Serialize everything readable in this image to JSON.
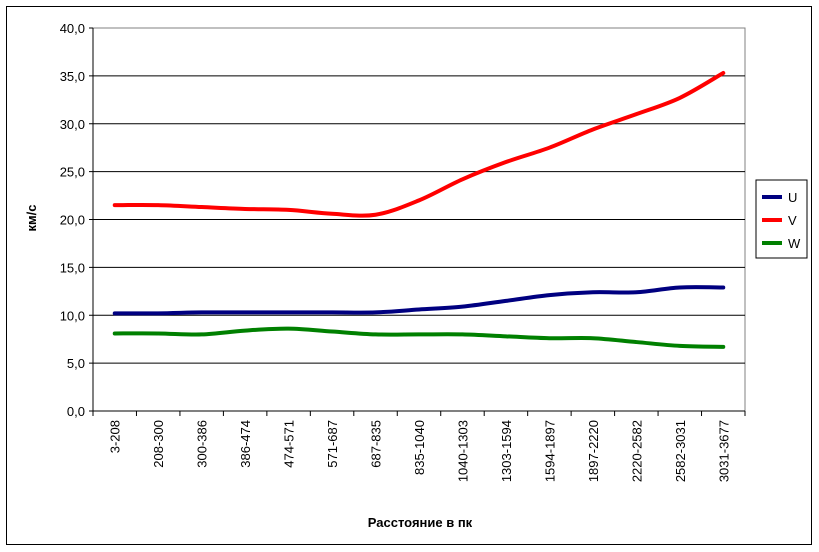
{
  "chart_data": {
    "type": "line",
    "title": "",
    "xlabel": "Расстояние в пк",
    "ylabel": "км/с",
    "ylim": [
      0,
      40
    ],
    "yticks": [
      "0,0",
      "5,0",
      "10,0",
      "15,0",
      "20,0",
      "25,0",
      "30,0",
      "35,0",
      "40,0"
    ],
    "grid": true,
    "legend_position": "right",
    "categories": [
      "3-208",
      "208-300",
      "300-386",
      "386-474",
      "474-571",
      "571-687",
      "687-835",
      "835-1040",
      "1040-1303",
      "1303-1594",
      "1594-1897",
      "1897-2220",
      "2220-2582",
      "2582-3031",
      "3031-3677"
    ],
    "series": [
      {
        "name": "U",
        "color": "#000080",
        "values": [
          10.2,
          10.2,
          10.3,
          10.3,
          10.3,
          10.3,
          10.3,
          10.6,
          10.9,
          11.5,
          12.1,
          12.4,
          12.4,
          12.9,
          12.9
        ]
      },
      {
        "name": "V",
        "color": "#ff0000",
        "values": [
          21.5,
          21.5,
          21.3,
          21.1,
          21.0,
          20.6,
          20.5,
          22.0,
          24.2,
          26.0,
          27.5,
          29.4,
          31.0,
          32.7,
          35.3
        ]
      },
      {
        "name": "W",
        "color": "#008000",
        "values": [
          8.1,
          8.1,
          8.0,
          8.4,
          8.6,
          8.3,
          8.0,
          8.0,
          8.0,
          7.8,
          7.6,
          7.6,
          7.2,
          6.8,
          6.7
        ]
      }
    ]
  }
}
